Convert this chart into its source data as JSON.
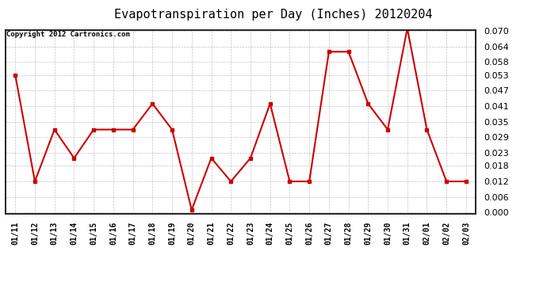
{
  "title": "Evapotranspiration per Day (Inches) 20120204",
  "copyright_text": "Copyright 2012 Cartronics.com",
  "dates": [
    "01/11",
    "01/12",
    "01/13",
    "01/14",
    "01/15",
    "01/16",
    "01/17",
    "01/18",
    "01/19",
    "01/20",
    "01/21",
    "01/22",
    "01/23",
    "01/24",
    "01/25",
    "01/26",
    "01/27",
    "01/28",
    "01/29",
    "01/30",
    "01/31",
    "02/01",
    "02/02",
    "02/03"
  ],
  "values": [
    0.053,
    0.012,
    0.032,
    0.021,
    0.032,
    0.032,
    0.032,
    0.042,
    0.032,
    0.001,
    0.021,
    0.012,
    0.021,
    0.042,
    0.012,
    0.012,
    0.062,
    0.062,
    0.042,
    0.032,
    0.071,
    0.032,
    0.012,
    0.012
  ],
  "line_color": "#cc0000",
  "marker": "s",
  "marker_size": 3,
  "ylim": [
    0.0,
    0.07
  ],
  "yticks": [
    0.0,
    0.006,
    0.012,
    0.018,
    0.023,
    0.029,
    0.035,
    0.041,
    0.047,
    0.053,
    0.058,
    0.064,
    0.07
  ],
  "background_color": "#ffffff",
  "grid_color": "#aaaaaa",
  "title_fontsize": 11,
  "copyright_fontsize": 6.5,
  "tick_fontsize": 7,
  "ytick_fontsize": 8
}
